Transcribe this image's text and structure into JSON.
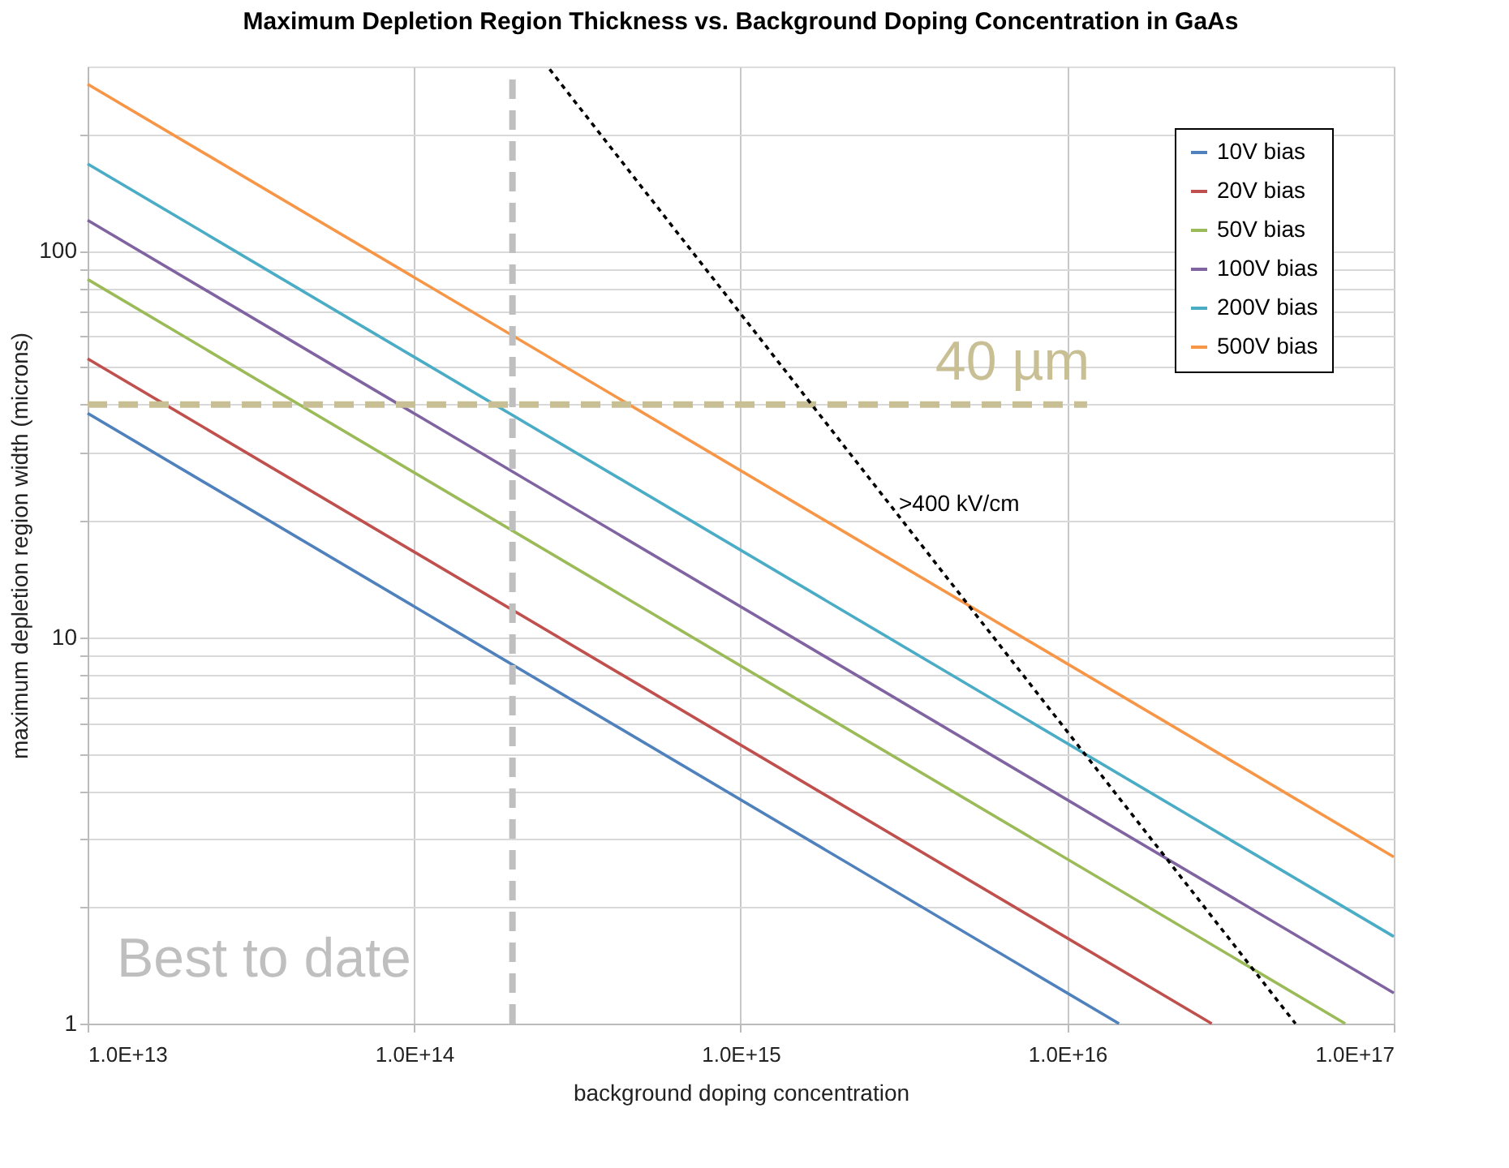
{
  "chart_data": {
    "type": "line",
    "title": "Maximum Depletion Region Thickness vs. Background Doping Concentration in GaAs",
    "xlabel": "background doping concentration",
    "ylabel": "maximum depletion region width (microns)",
    "log": "xy",
    "grid": true,
    "legend": "top right",
    "line_style": "solid",
    "marker": "none",
    "xlim": [
      10000000000000.0,
      1e+17
    ],
    "ylim": [
      1,
      300
    ],
    "xticks": [
      {
        "value": 10000000000000.0,
        "label": "1.0E+13"
      },
      {
        "value": 100000000000000.0,
        "label": "1.0E+14"
      },
      {
        "value": 1000000000000000.0,
        "label": "1.0E+15"
      },
      {
        "value": 1e+16,
        "label": "1.0E+16"
      },
      {
        "value": 1e+17,
        "label": "1.0E+17"
      }
    ],
    "yticks": [
      1,
      {
        "value": 2,
        "label": null
      },
      {
        "value": 3,
        "label": null
      },
      {
        "value": 4,
        "label": null
      },
      {
        "value": 5,
        "label": null
      },
      {
        "value": 6,
        "label": null
      },
      {
        "value": 7,
        "label": null
      },
      {
        "value": 8,
        "label": null
      },
      {
        "value": 9,
        "label": null
      },
      10,
      {
        "value": 20,
        "label": null
      },
      {
        "value": 30,
        "label": null
      },
      {
        "value": 40,
        "label": null
      },
      {
        "value": 50,
        "label": null
      },
      {
        "value": 60,
        "label": null
      },
      {
        "value": 70,
        "label": null
      },
      {
        "value": 80,
        "label": null
      },
      {
        "value": 90,
        "label": null
      },
      100,
      {
        "value": 200,
        "label": null
      }
    ],
    "series": [
      {
        "name": "10V bias",
        "color": "#4f81bd",
        "x": [
          10000000000000.0,
          1.44e+16
        ],
        "values": [
          38,
          1
        ]
      },
      {
        "name": "20V bias",
        "color": "#c0504d",
        "x": [
          10000000000000.0,
          2.77e+16
        ],
        "values": [
          52.6,
          1
        ]
      },
      {
        "name": "50V bias",
        "color": "#9bbb59",
        "x": [
          10000000000000.0,
          7.1e+16
        ],
        "values": [
          84.4,
          1
        ]
      },
      {
        "name": "100V bias",
        "color": "#8064a2",
        "x": [
          10000000000000.0,
          1e+17
        ],
        "values": [
          120,
          1.2
        ]
      },
      {
        "name": "200V bias",
        "color": "#4bacc6",
        "x": [
          10000000000000.0,
          1e+17
        ],
        "values": [
          168,
          1.68
        ]
      },
      {
        "name": "500V bias",
        "color": "#f79646",
        "x": [
          10000000000000.0,
          1e+17
        ],
        "values": [
          270,
          2.7
        ]
      },
      {
        "color": "#c9bf94",
        "line_style": "dashed",
        "x": [
          10000000000000.0,
          1.15e+16
        ],
        "values": [
          40,
          40
        ]
      },
      {
        "color": "#000000",
        "line_style": "dotted",
        "x": [
          260000000000000.0,
          5e+16
        ],
        "values": [
          295,
          1
        ]
      },
      {
        "color": "#bfbfbf",
        "line_style": "dashed",
        "x": [
          200000000000000.0,
          200000000000000.0
        ],
        "values": [
          1,
          280
        ]
      }
    ],
    "annotations": [
      "40 µm",
      ">400 kV/cm",
      "Best to date"
    ]
  }
}
